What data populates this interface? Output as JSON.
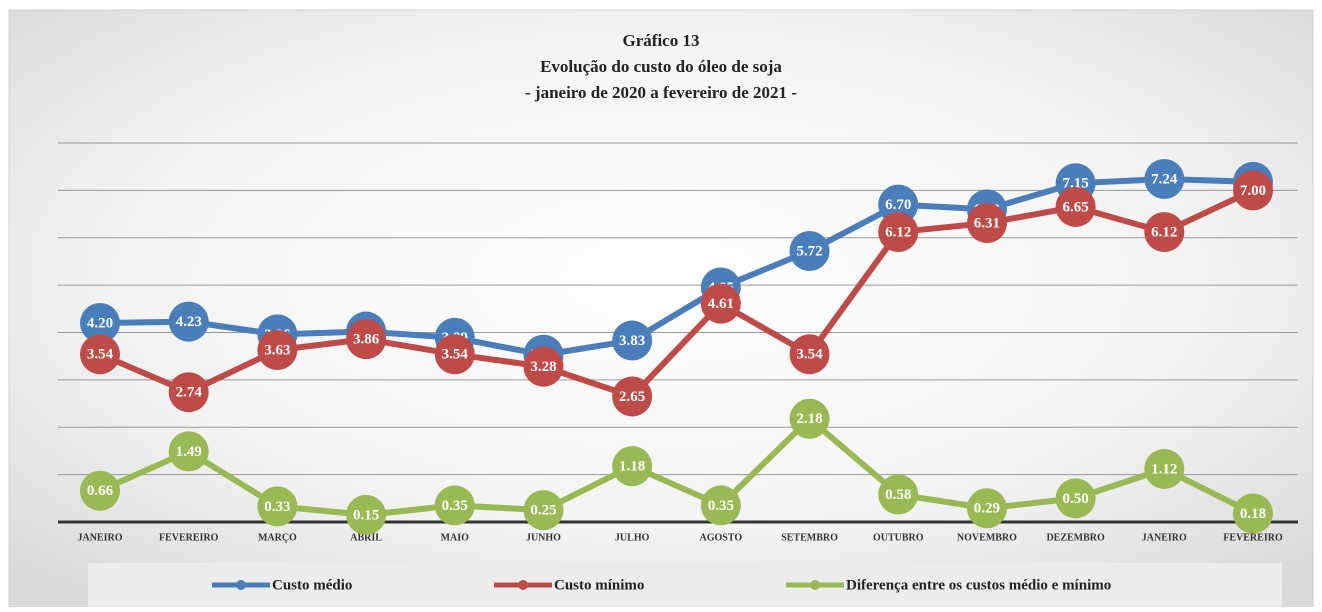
{
  "chart_data": {
    "type": "line",
    "title": [
      "Gráfico 13",
      "Evolução do custo do óleo de soja",
      "- janeiro de 2020 a fevereiro de 2021 -"
    ],
    "categories": [
      "JANEIRO",
      "FEVEREIRO",
      "MARÇO",
      "ABRIL",
      "MAIO",
      "JUNHO",
      "JULHO",
      "AGOSTO",
      "SETEMBRO",
      "OUTUBRO",
      "NOVEMBRO",
      "DEZEMBRO",
      "JANEIRO",
      "FEVEREIRO"
    ],
    "series": [
      {
        "name": "Custo médio",
        "color": "#4a7ebb",
        "values": [
          4.2,
          4.23,
          3.96,
          4.02,
          3.89,
          3.53,
          3.83,
          4.95,
          5.72,
          6.7,
          6.6,
          7.15,
          7.24,
          7.18
        ],
        "value_labels": [
          "4.20",
          "4.23",
          "3.96",
          "4.02",
          "3.89",
          "3.53",
          "3.83",
          "4.95",
          "5.72",
          "6.70",
          "6.60",
          "7.15",
          "7.24",
          "7.18"
        ]
      },
      {
        "name": "Custo mínimo",
        "color": "#be4b48",
        "values": [
          3.54,
          2.74,
          3.63,
          3.86,
          3.54,
          3.28,
          2.65,
          4.61,
          3.54,
          6.12,
          6.31,
          6.65,
          6.12,
          7.0
        ],
        "value_labels": [
          "3.54",
          "2.74",
          "3.63",
          "3.86",
          "3.54",
          "3.28",
          "2.65",
          "4.61",
          "3.54",
          "6.12",
          "6.31",
          "6.65",
          "6.12",
          "7.00"
        ]
      },
      {
        "name": "Diferença entre os custos médio e mínimo",
        "color": "#98b954",
        "values": [
          0.66,
          1.49,
          0.33,
          0.15,
          0.35,
          0.25,
          1.18,
          0.35,
          2.18,
          0.58,
          0.29,
          0.5,
          1.12,
          0.18
        ],
        "value_labels": [
          "0.66",
          "1.49",
          "0.33",
          "0.15",
          "0.35",
          "0.25",
          "1.18",
          "0.35",
          "2.18",
          "0.58",
          "0.29",
          "0.50",
          "1.12",
          "0.18"
        ]
      }
    ],
    "ylim": [
      0,
      8
    ],
    "yticks": [
      0,
      1,
      2,
      3,
      4,
      5,
      6,
      7,
      8
    ],
    "grid": true,
    "legend": "bottom"
  }
}
